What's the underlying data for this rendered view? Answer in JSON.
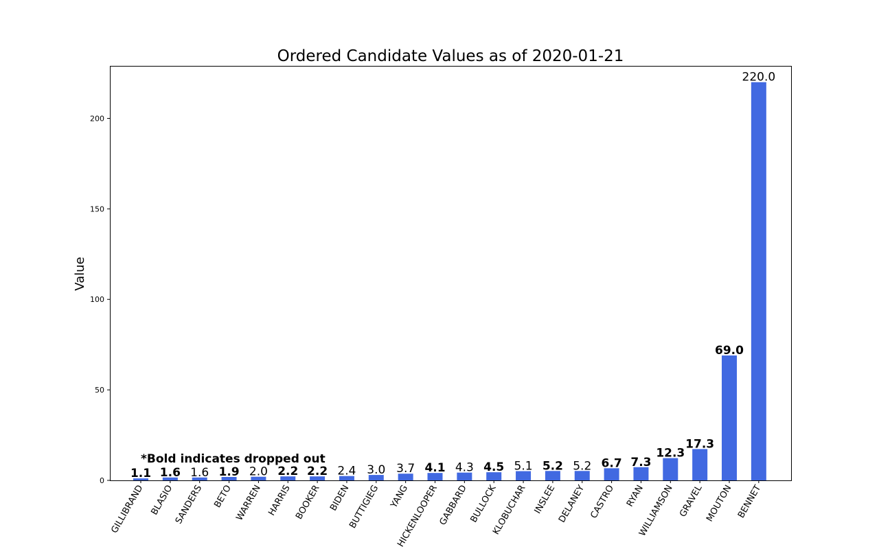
{
  "chart_data": {
    "type": "bar",
    "title": "Ordered Candidate Values as of 2020-01-21",
    "xlabel": "",
    "ylabel": "Value",
    "ylim": [
      0,
      229
    ],
    "yticks": [
      0,
      50,
      100,
      150,
      200
    ],
    "grid": false,
    "bar_color": "#4169e1",
    "annotation": "*Bold indicates dropped out",
    "categories": [
      "GILLIBRAND",
      "BLASIO",
      "SANDERS",
      "BETO",
      "WARREN",
      "HARRIS",
      "BOOKER",
      "BIDEN",
      "BUTTIGIEG",
      "YANG",
      "HICKENLOOPER",
      "GABBARD",
      "BULLOCK",
      "KLOBUCHAR",
      "INSLEE",
      "DELANEY",
      "CASTRO",
      "RYAN",
      "WILLIAMSON",
      "GRAVEL",
      "MOUTON",
      "BENNET"
    ],
    "values": [
      1.1,
      1.6,
      1.6,
      1.9,
      2.0,
      2.2,
      2.2,
      2.4,
      3.0,
      3.7,
      4.1,
      4.3,
      4.5,
      5.1,
      5.2,
      5.2,
      6.7,
      7.3,
      12.3,
      17.3,
      69.0,
      220.0
    ],
    "value_labels": [
      "1.1",
      "1.6",
      "1.6",
      "1.9",
      "2.0",
      "2.2",
      "2.2",
      "2.4",
      "3.0",
      "3.7",
      "4.1",
      "4.3",
      "4.5",
      "5.1",
      "5.2",
      "5.2",
      "6.7",
      "7.3",
      "12.3",
      "17.3",
      "69.0",
      "220.0"
    ],
    "dropped_out": [
      true,
      true,
      false,
      true,
      false,
      true,
      true,
      false,
      false,
      false,
      true,
      false,
      true,
      false,
      true,
      false,
      true,
      true,
      true,
      true,
      true,
      false
    ]
  }
}
